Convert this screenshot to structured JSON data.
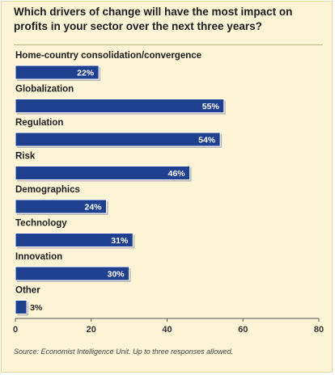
{
  "chart_data": {
    "type": "bar",
    "orientation": "horizontal",
    "title": "Which drivers of change will have the most impact on profits in your sector over the next three years?",
    "categories": [
      "Home-country consolidation/convergence",
      "Globalization",
      "Regulation",
      "Risk",
      "Demographics",
      "Technology",
      "Innovation",
      "Other"
    ],
    "values": [
      22,
      55,
      54,
      46,
      24,
      31,
      30,
      3
    ],
    "value_labels": [
      "22%",
      "55%",
      "54%",
      "46%",
      "24%",
      "31%",
      "30%",
      "3%"
    ],
    "xlim": [
      0,
      80
    ],
    "x_ticks": [
      0,
      20,
      40,
      60,
      80
    ],
    "x_tick_labels": [
      "0",
      "20",
      "40",
      "60",
      "80"
    ],
    "grid": false,
    "legend": "none",
    "bar_color": "#1f3f8f",
    "source": "Source: Economist Intelligence Unit.   Up to three responses allowed."
  },
  "colors": {
    "background": "#fdf4d6",
    "bar": "#1f3f8f",
    "bar_shadow": "#b9b9b9"
  }
}
